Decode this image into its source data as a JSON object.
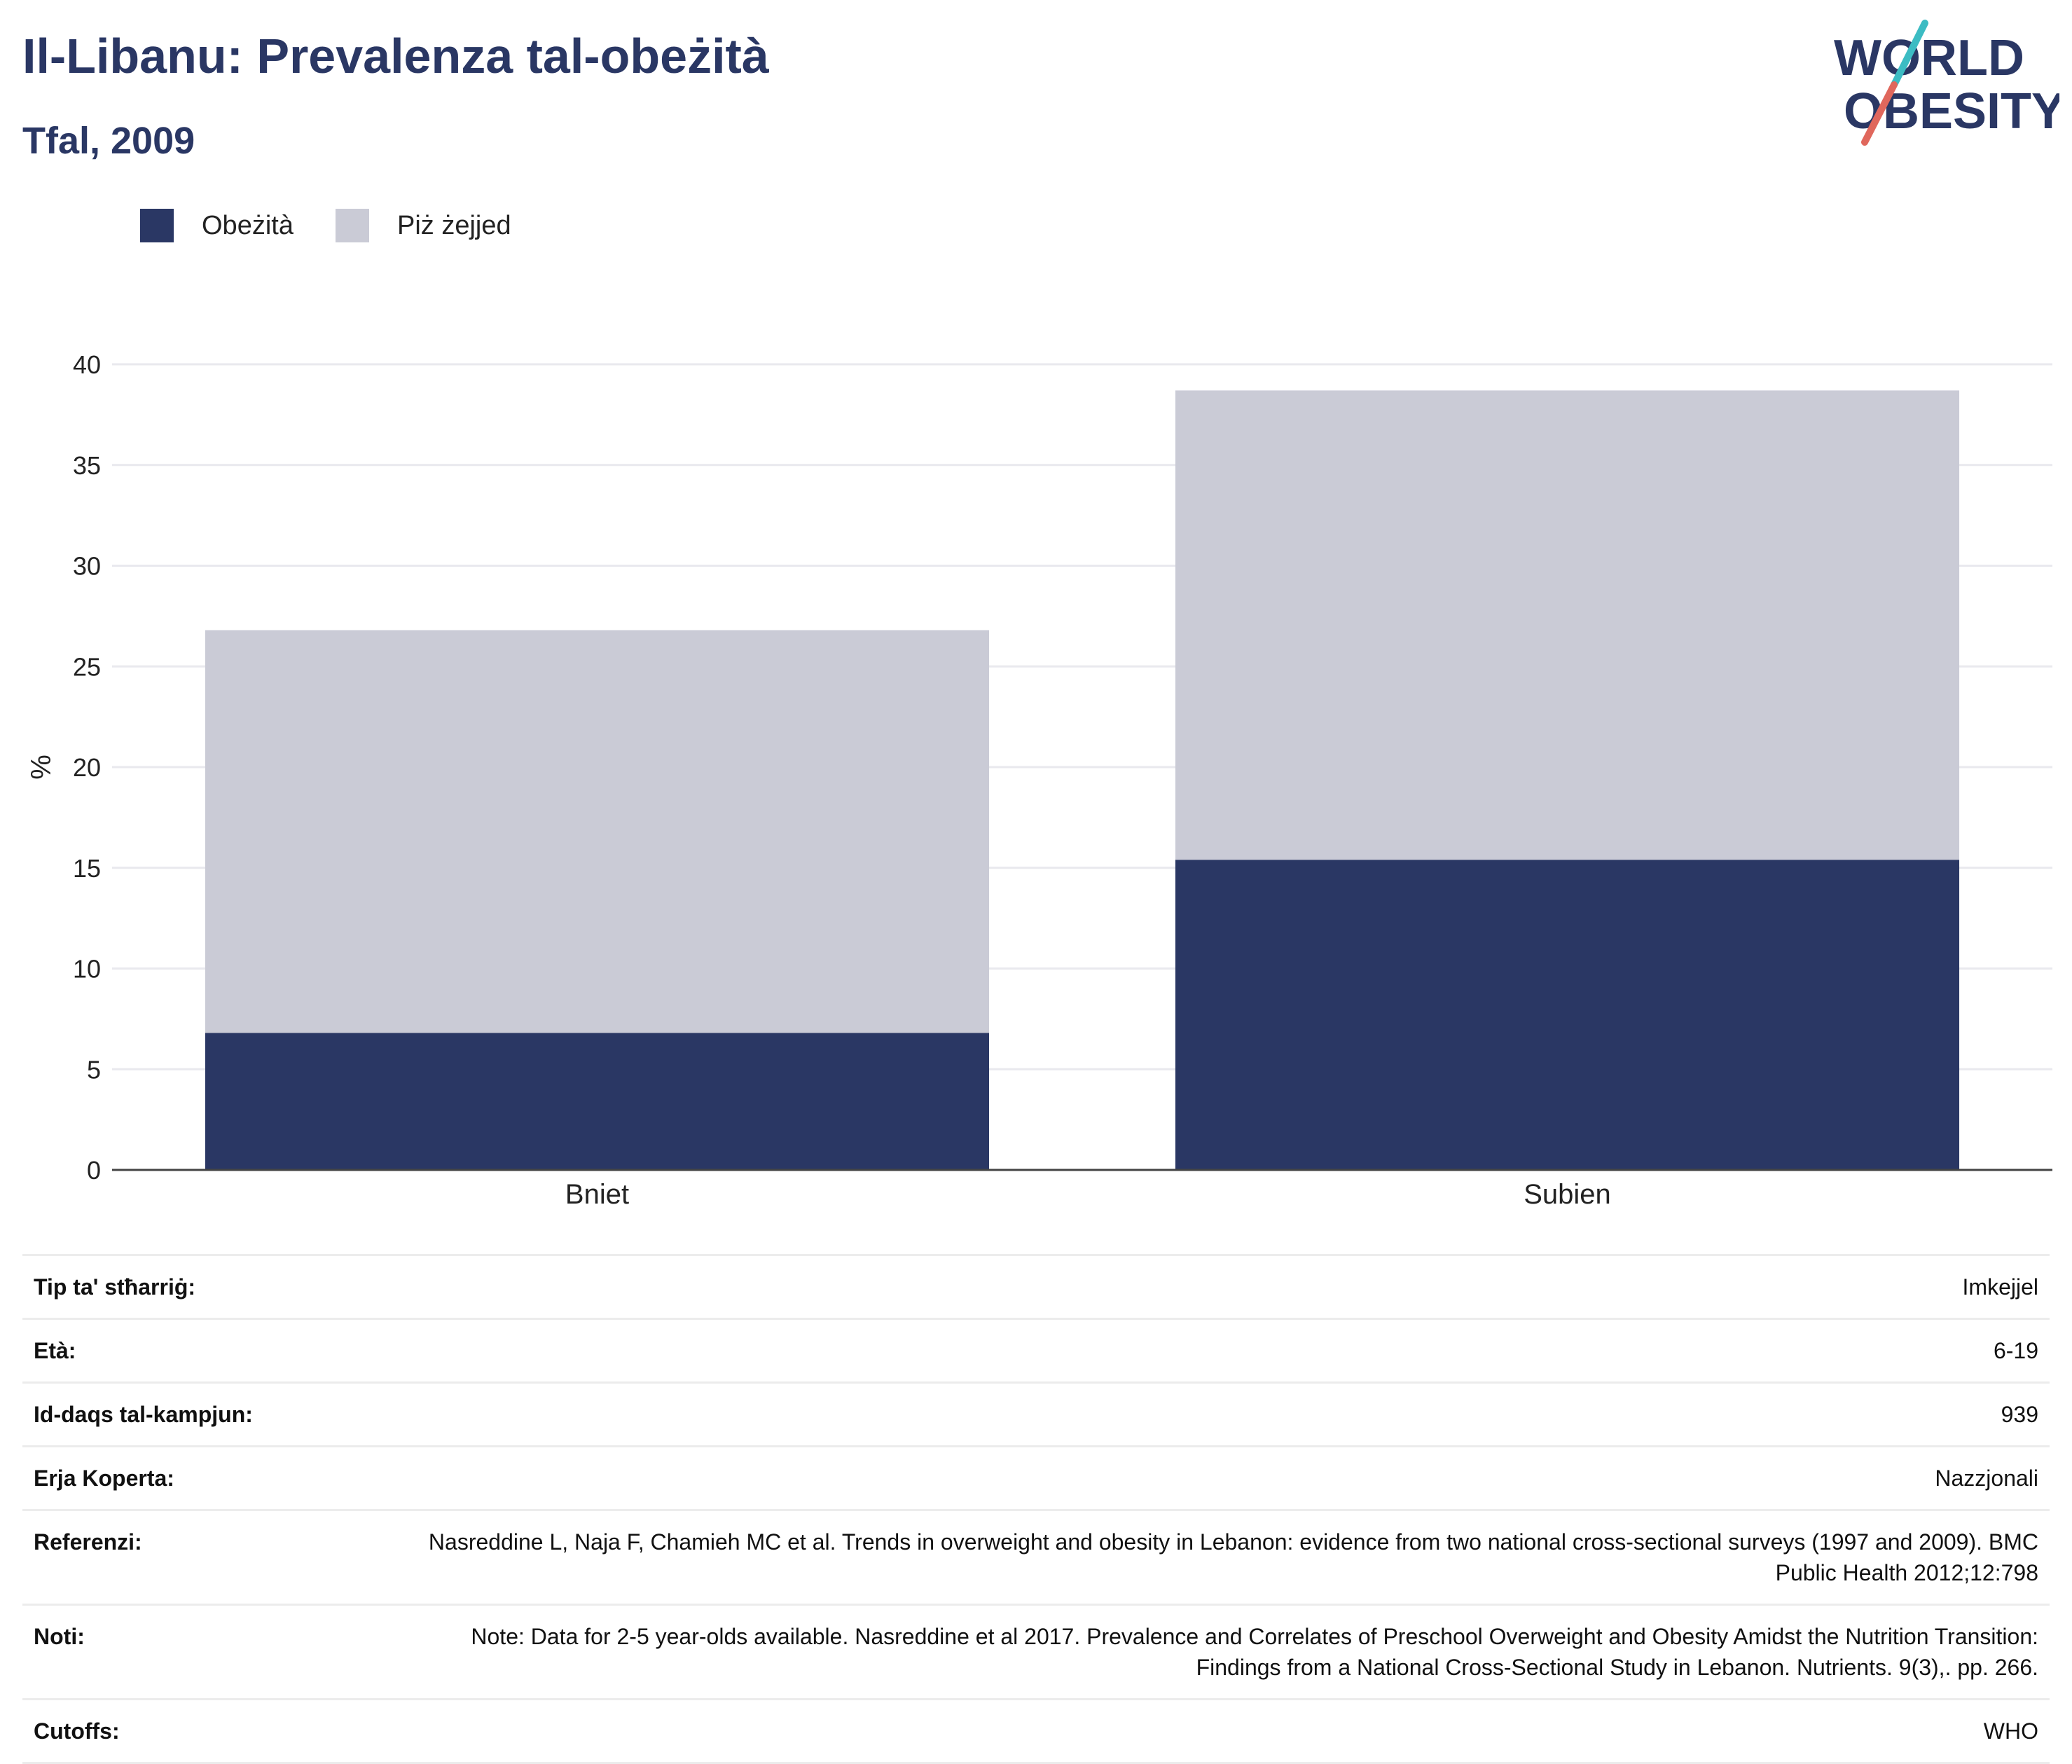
{
  "header": {
    "title": "Il-Libanu: Prevalenza tal-obeżità",
    "subtitle": "Tfal, 2009"
  },
  "logo": {
    "line1": "WORLD",
    "line2": "OBESITY",
    "colors": {
      "text": "#2a3764",
      "slash_top": "#3cbcc3",
      "slash_bottom": "#e0675c"
    }
  },
  "legend": {
    "items": [
      {
        "label": "Obeżità",
        "color": "#2a3764"
      },
      {
        "label": "Piż żejjed",
        "color": "#cacbd6"
      }
    ]
  },
  "chart_data": {
    "type": "bar",
    "stacked": true,
    "categories": [
      "Bniet",
      "Subien"
    ],
    "series": [
      {
        "name": "Obeżità",
        "values": [
          6.8,
          15.4
        ],
        "color": "#2a3764"
      },
      {
        "name": "Piż żejjed",
        "values": [
          20.0,
          23.3
        ],
        "color": "#cacbd6"
      }
    ],
    "ylabel": "%",
    "xlabel": "",
    "ylim": [
      0,
      40
    ],
    "yticks": [
      0,
      5,
      10,
      15,
      20,
      25,
      30,
      35,
      40
    ],
    "grid": true,
    "legend_position": "top-left"
  },
  "meta": {
    "rows": [
      {
        "label": "Tip ta' stħarriġ:",
        "value": "Imkejjel"
      },
      {
        "label": "Età:",
        "value": "6-19"
      },
      {
        "label": "Id-daqs tal-kampjun:",
        "value": "939"
      },
      {
        "label": "Erja Koperta:",
        "value": "Nazzjonali"
      },
      {
        "label": "Referenzi:",
        "value": "Nasreddine L, Naja F, Chamieh MC et al. Trends in overweight and obesity in Lebanon: evidence from two national cross-sectional surveys (1997 and 2009). BMC Public Health 2012;12:798"
      },
      {
        "label": "Noti:",
        "value": "Note: Data for 2-5 year-olds available. Nasreddine et al 2017. Prevalence and Correlates of Preschool Overweight and Obesity Amidst the Nutrition Transition: Findings from a National Cross-Sectional Study in Lebanon. Nutrients. 9(3),. pp. 266."
      },
      {
        "label": "Cutoffs:",
        "value": "WHO"
      }
    ]
  }
}
